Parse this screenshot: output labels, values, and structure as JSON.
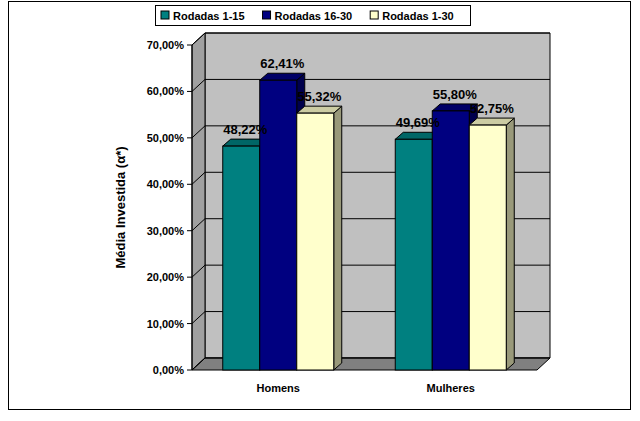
{
  "chart_data": {
    "type": "bar",
    "y_label": "Média Investida (α*)",
    "categories": [
      "Homens",
      "Mulheres"
    ],
    "series": [
      {
        "name": "Rodadas 1-15",
        "color": "#008080",
        "values": [
          48.22,
          49.69
        ],
        "value_labels": [
          "48,22%",
          "49,69%"
        ]
      },
      {
        "name": "Rodadas 16-30",
        "color": "#000080",
        "values": [
          62.41,
          55.8
        ],
        "value_labels": [
          "62,41%",
          "55,80%"
        ]
      },
      {
        "name": "Rodadas 1-30",
        "color": "#ffffcc",
        "values": [
          55.32,
          52.75
        ],
        "value_labels": [
          "55,32%",
          "52,75%"
        ]
      }
    ],
    "ylim": [
      0,
      70
    ],
    "yticks": [
      {
        "value": 0,
        "label": "0,00%"
      },
      {
        "value": 10,
        "label": "10,00%"
      },
      {
        "value": 20,
        "label": "20,00%"
      },
      {
        "value": 30,
        "label": "30,00%"
      },
      {
        "value": 40,
        "label": "40,00%"
      },
      {
        "value": 50,
        "label": "50,00%"
      },
      {
        "value": 60,
        "label": "60,00%"
      },
      {
        "value": 70,
        "label": "70,00%"
      }
    ],
    "grid": true,
    "legend": "top",
    "data_labels": true
  }
}
